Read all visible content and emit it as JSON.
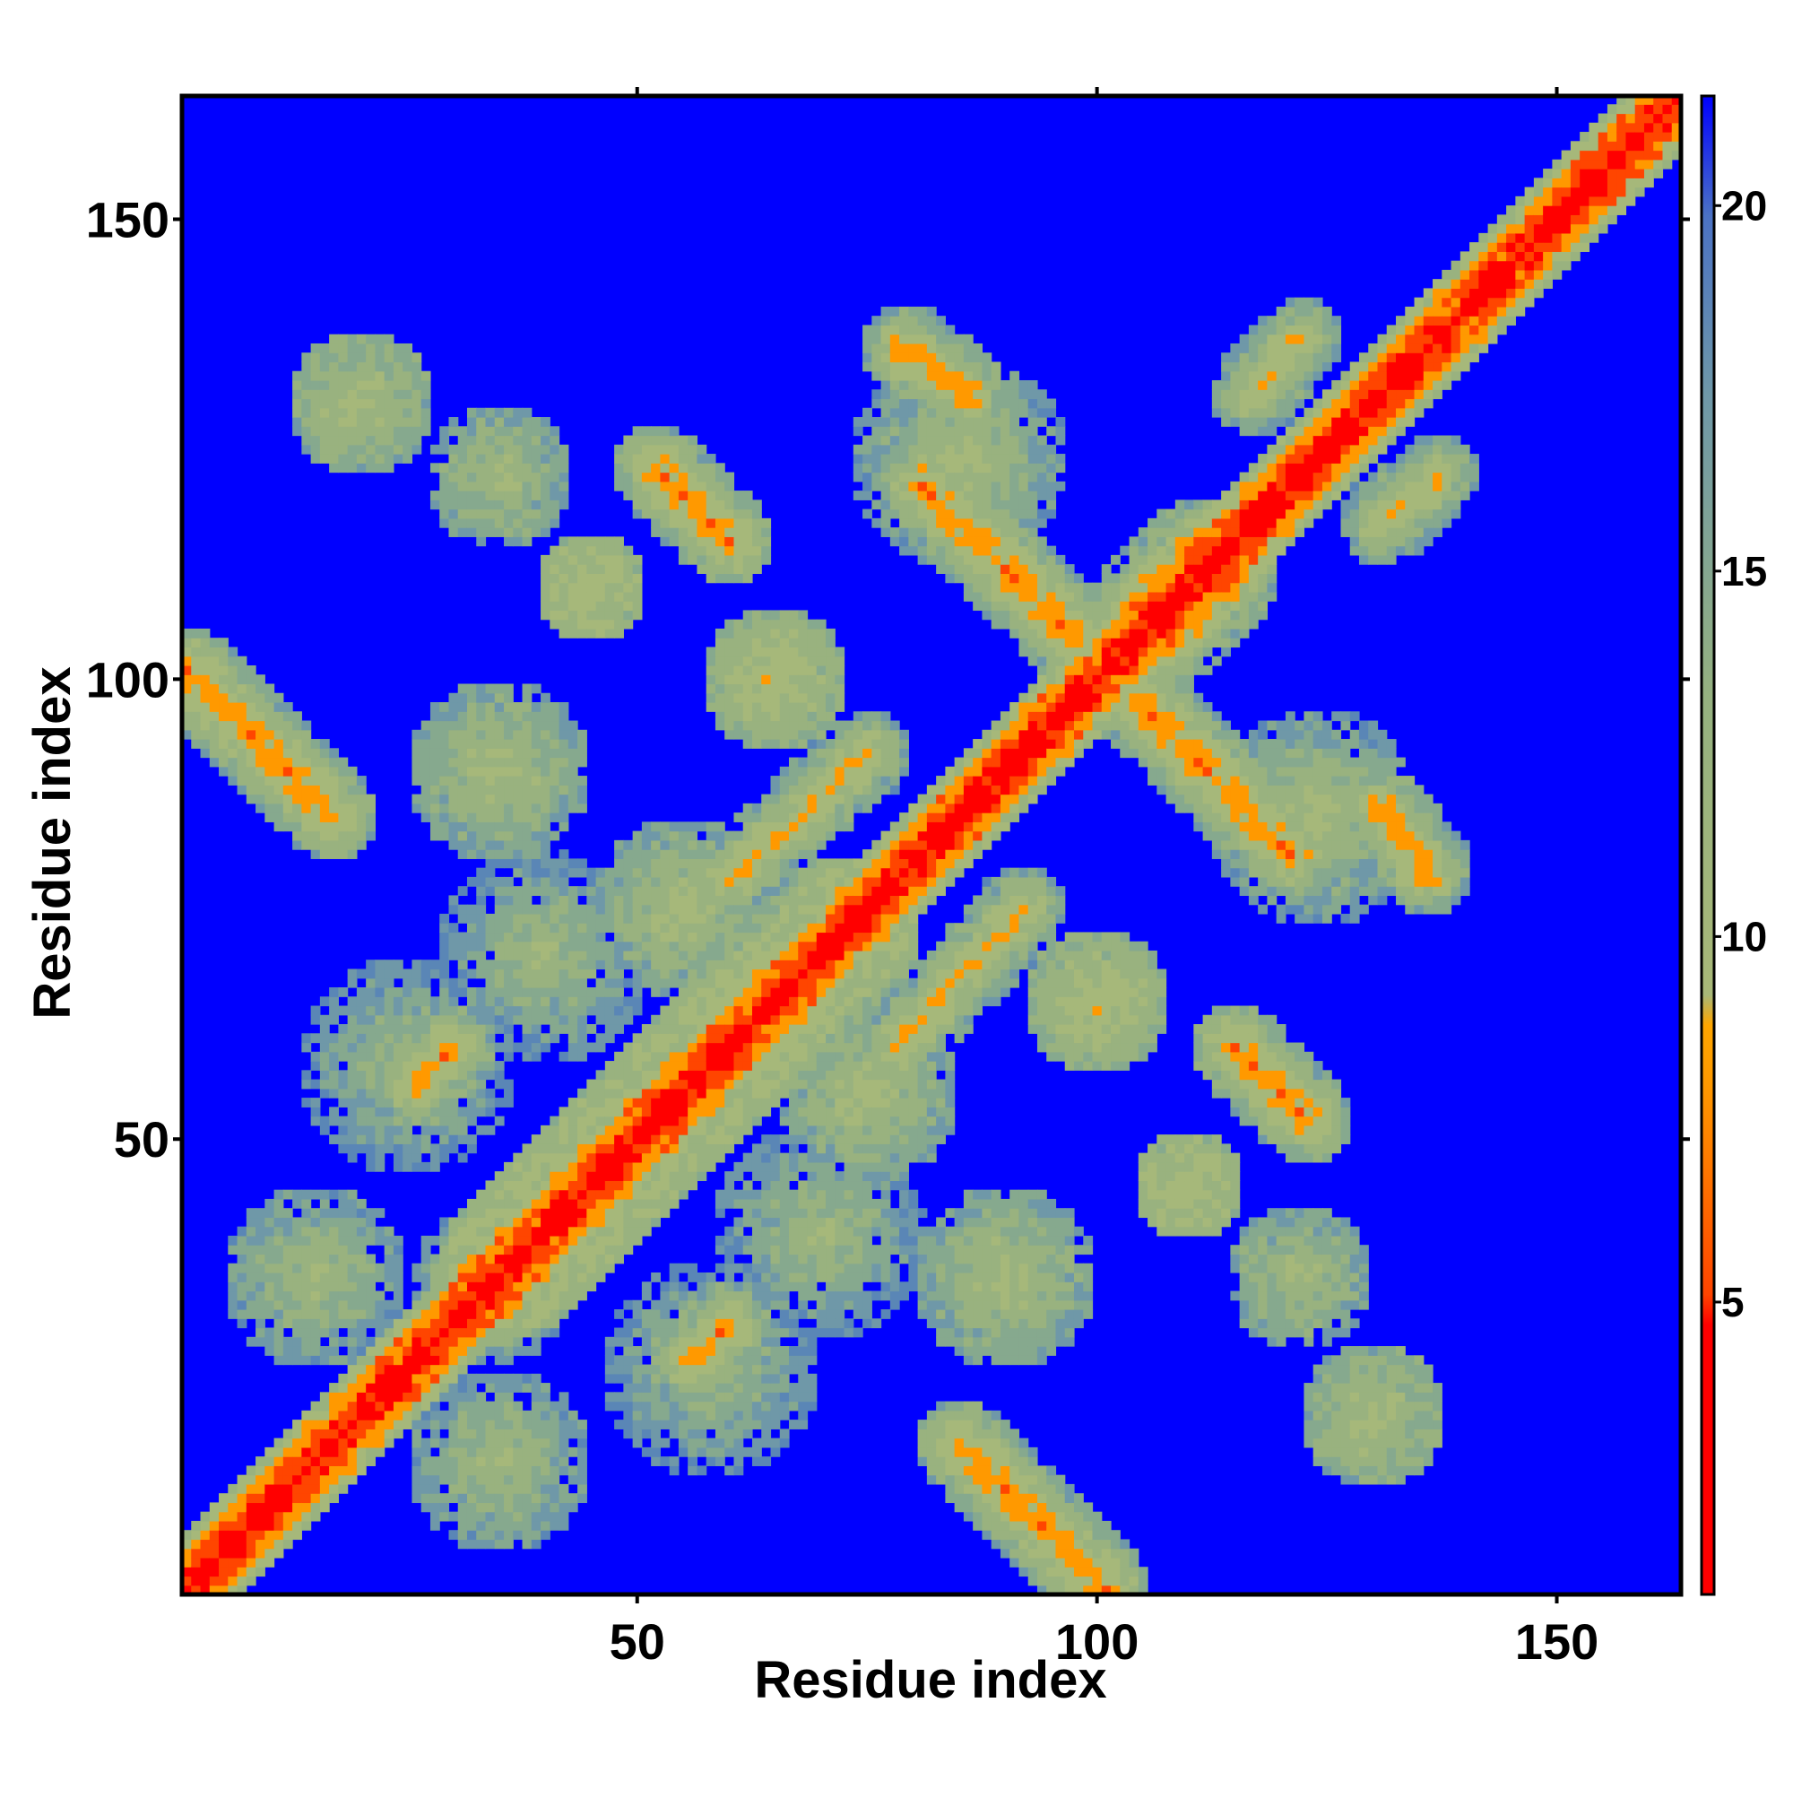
{
  "chart_data": {
    "type": "heatmap",
    "title": "",
    "xlabel": "Residue index",
    "ylabel": "Residue index",
    "xlim": [
      1,
      163
    ],
    "ylim": [
      1,
      163
    ],
    "x_ticks": [
      50,
      100,
      150
    ],
    "y_ticks": [
      50,
      100,
      150
    ],
    "x_tick_labels": [
      "50",
      "100",
      "150"
    ],
    "y_tick_labels": [
      "50",
      "100",
      "150"
    ],
    "colorbar": {
      "range": [
        1,
        21.5
      ],
      "ticks": [
        5,
        10,
        15,
        20
      ],
      "tick_labels": [
        "5",
        "10",
        "15",
        "20"
      ],
      "colors": {
        "near": "#ff0000",
        "mid": "#ff9900",
        "contact": "#9cb87e",
        "far": "#0000ff"
      }
    },
    "description_symmetric": true,
    "contact_features": [
      {
        "name": "diagonal",
        "i_start": 1,
        "i_end": 163,
        "offset": 0,
        "value": 2
      },
      {
        "name": "helix-band",
        "i_start": 30,
        "i_end": 75,
        "offset": 8,
        "value": 11
      },
      {
        "name": "antiparallel-1",
        "i": [
          1,
          17
        ],
        "j": [
          101,
          85
        ],
        "value": 6
      },
      {
        "name": "antiparallel-2",
        "i": [
          52,
          60
        ],
        "j": [
          123,
          115
        ],
        "value": 6
      },
      {
        "name": "antiparallel-3",
        "i": [
          81,
          98
        ],
        "j": [
          121,
          104
        ],
        "value": 6
      },
      {
        "name": "antiparallel-4",
        "i": [
          79,
          86
        ],
        "j": [
          136,
          131
        ],
        "value": 7
      },
      {
        "name": "block-1",
        "i": [
          20,
          90
        ],
        "j": [
          20,
          95
        ],
        "value": 12
      },
      {
        "name": "block-2",
        "i": [
          110,
          135
        ],
        "j": [
          20,
          60
        ],
        "value": 12
      }
    ]
  }
}
